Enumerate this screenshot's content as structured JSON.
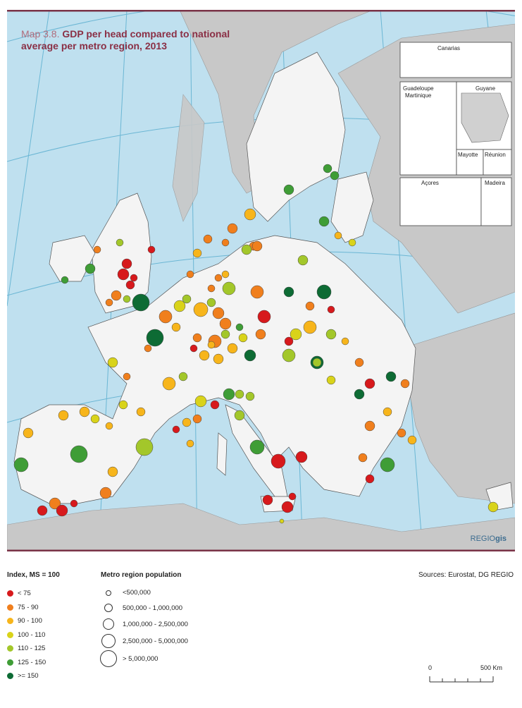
{
  "map": {
    "prefix": "Map 3.8.",
    "title": "GDP per head compared to national average per metro region, 2013",
    "brand_a": "REGIO",
    "brand_b": "gis"
  },
  "insets": {
    "canarias": "Canarias",
    "guadeloupe": "Guadeloupe",
    "martinique": "Martinique",
    "guyane": "Guyane",
    "mayotte": "Mayotte",
    "reunion": "Réunion",
    "acores": "Açores",
    "madeira": "Madeira"
  },
  "legend": {
    "index_title": "Index, MS = 100",
    "classes": [
      {
        "label": "< 75",
        "color": "#d7191c"
      },
      {
        "label": "75 - 90",
        "color": "#f07f1d"
      },
      {
        "label": "90 - 100",
        "color": "#f7b51b"
      },
      {
        "label": "100 - 110",
        "color": "#d9d31a"
      },
      {
        "label": "110 - 125",
        "color": "#a3c72a"
      },
      {
        "label": "125 - 150",
        "color": "#3f9d36"
      },
      {
        "label": ">= 150",
        "color": "#0d6b34"
      }
    ],
    "population_title": "Metro region population",
    "sizes": [
      "<500,000",
      "500,000 - 1,000,000",
      "1,000,000 - 2,500,000",
      "2,500,000 - 5,000,000",
      "> 5,000,000"
    ]
  },
  "sources": "Sources: Eurostat, DG REGIO",
  "scale": {
    "start": "0",
    "end": "500 Km"
  },
  "colors": {
    "sea": "#bfe0ef",
    "eu_land": "#f4f4f4",
    "non_eu_land": "#c8c8c8",
    "frame": "#7a3347",
    "graticule": "#6bb6d4"
  }
}
